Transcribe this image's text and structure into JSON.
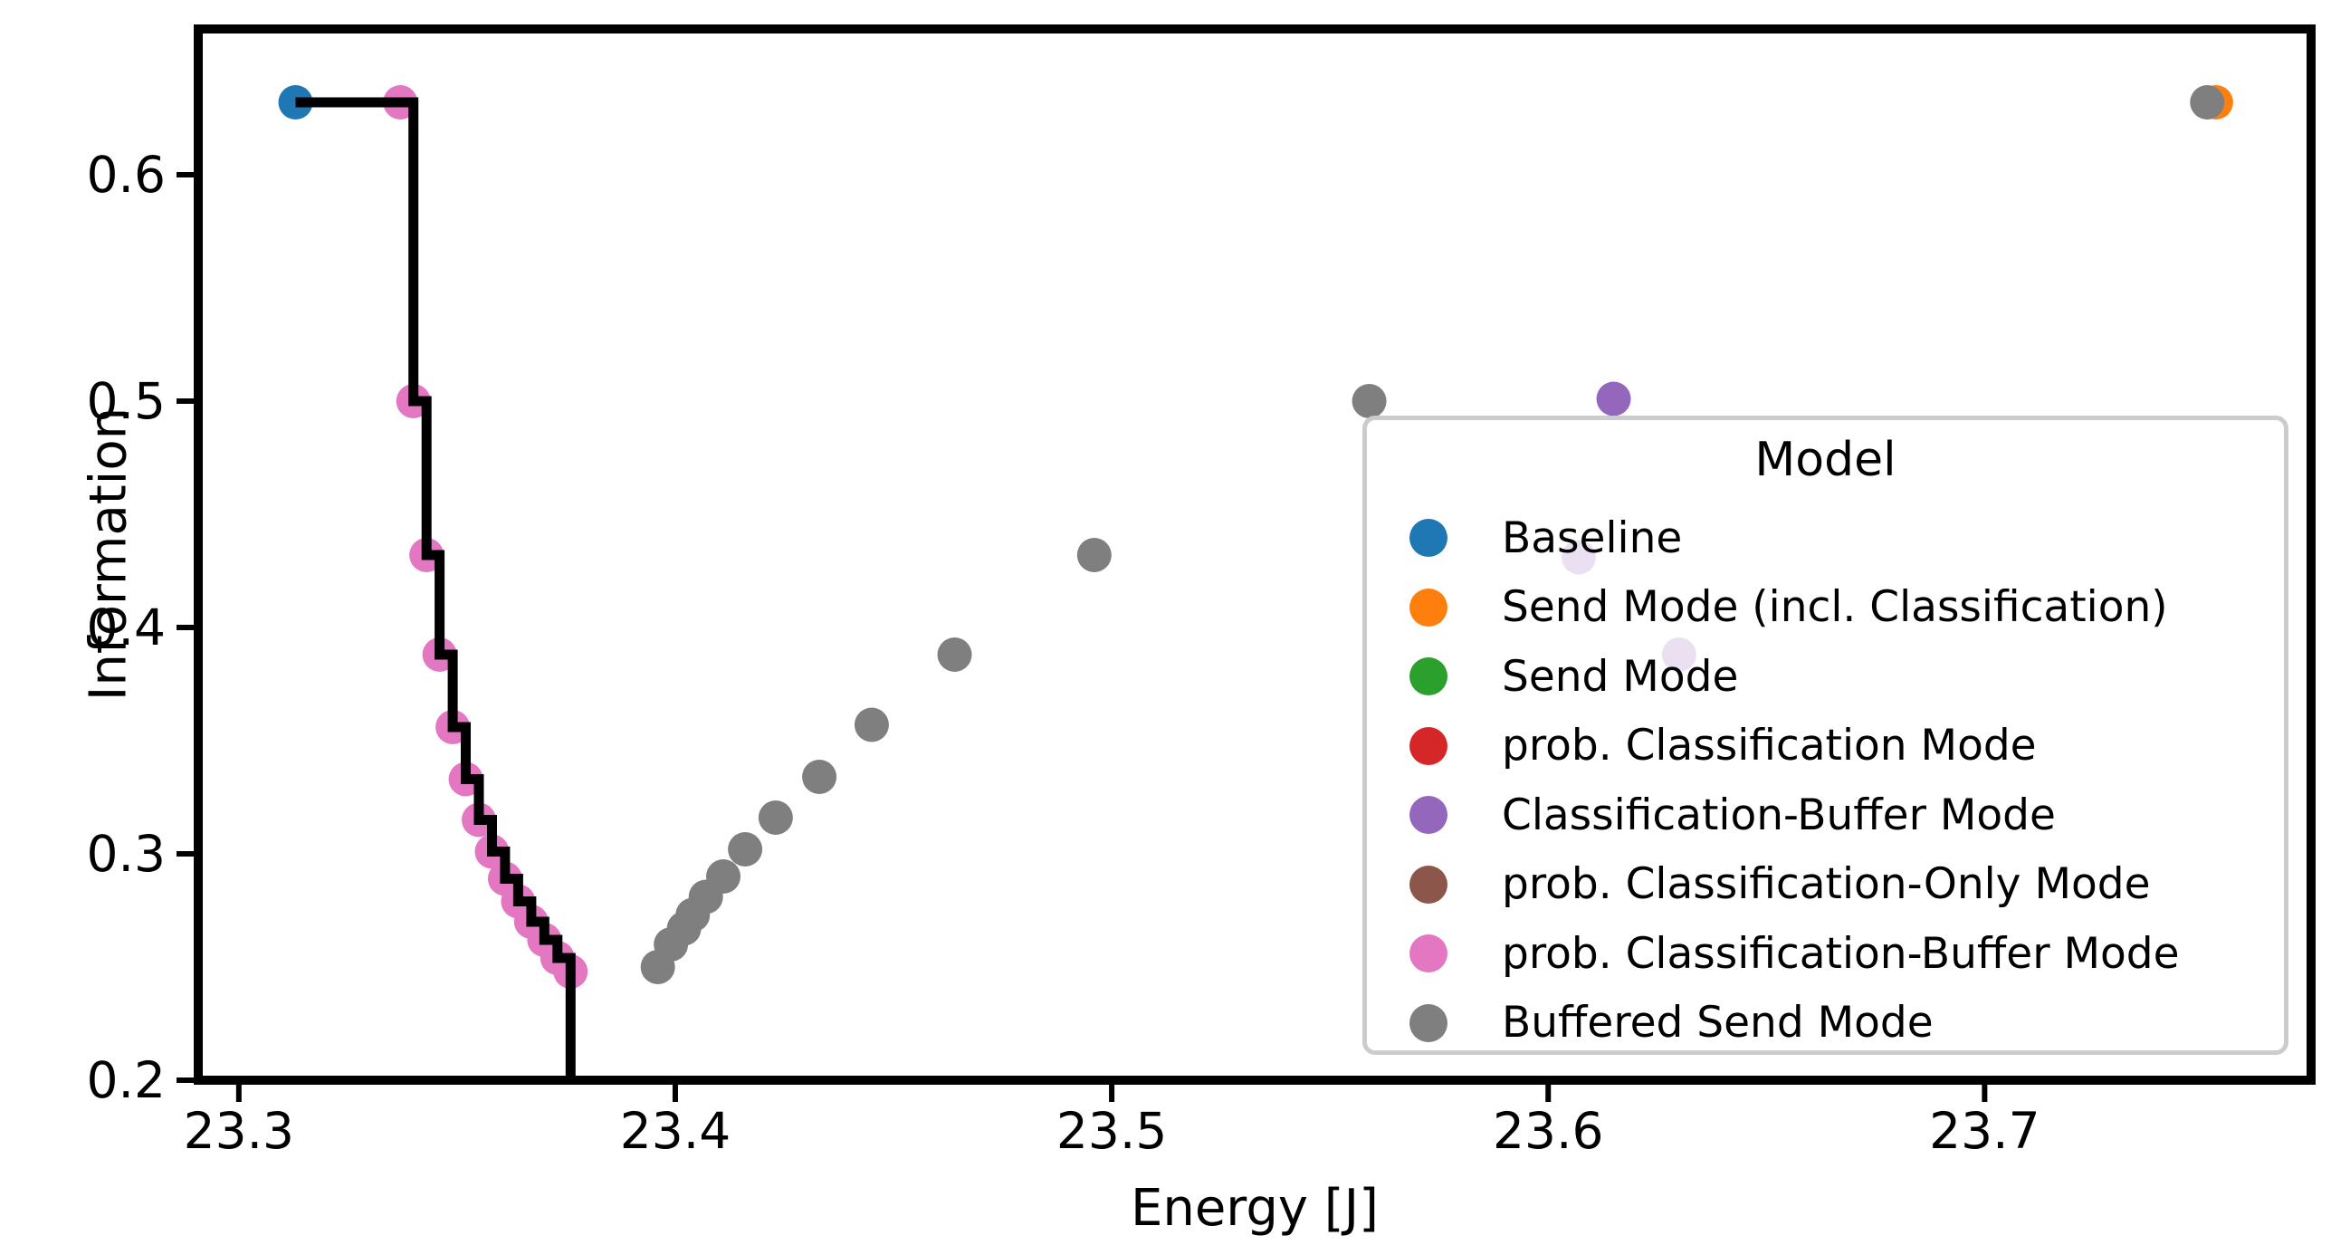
{
  "chart_data": {
    "type": "scatter",
    "title": "",
    "xlabel": "Energy [J]",
    "ylabel": "Information",
    "xlim": [
      23.2907,
      23.7748
    ],
    "ylim": [
      0.2,
      0.6644
    ],
    "grid": false,
    "xticks": {
      "values": [
        23.3,
        23.4,
        23.5,
        23.6,
        23.7
      ],
      "labels": [
        "23.3",
        "23.4",
        "23.5",
        "23.6",
        "23.7"
      ]
    },
    "yticks": {
      "values": [
        0.2,
        0.3,
        0.4,
        0.5,
        0.6
      ],
      "labels": [
        "0.2",
        "0.3",
        "0.4",
        "0.5",
        "0.6"
      ]
    },
    "legend": {
      "title": "Model",
      "position": "lower right inside"
    },
    "series": [
      {
        "name": "Baseline",
        "color": "#1f77b4",
        "points": [
          [
            23.313,
            0.632
          ]
        ]
      },
      {
        "name": "Send Mode (incl. Classification)",
        "color": "#ff7f0e",
        "points": [
          [
            23.753,
            0.632
          ]
        ]
      },
      {
        "name": "Send Mode",
        "color": "#2ca02c",
        "points": []
      },
      {
        "name": "prob. Classification Mode",
        "color": "#d62728",
        "points": []
      },
      {
        "name": "Classification-Buffer Mode",
        "color": "#9467bd",
        "points": [
          [
            23.615,
            0.501
          ],
          [
            23.607,
            0.431
          ],
          [
            23.63,
            0.388
          ]
        ]
      },
      {
        "name": "prob. Classification-Only Mode",
        "color": "#8c564b",
        "points": []
      },
      {
        "name": "prob. Classification-Buffer Mode",
        "color": "#e377c2",
        "points": [
          [
            23.337,
            0.632
          ],
          [
            23.34,
            0.5
          ],
          [
            23.343,
            0.432
          ],
          [
            23.346,
            0.388
          ],
          [
            23.349,
            0.356
          ],
          [
            23.352,
            0.333
          ],
          [
            23.355,
            0.315
          ],
          [
            23.358,
            0.301
          ],
          [
            23.361,
            0.289
          ],
          [
            23.364,
            0.279
          ],
          [
            23.367,
            0.27
          ],
          [
            23.37,
            0.262
          ],
          [
            23.373,
            0.254
          ],
          [
            23.376,
            0.248
          ]
        ]
      },
      {
        "name": "Buffered Send Mode",
        "color": "#7f7f7f",
        "points": [
          [
            23.396,
            0.25
          ],
          [
            23.399,
            0.26
          ],
          [
            23.402,
            0.267
          ],
          [
            23.404,
            0.273
          ],
          [
            23.407,
            0.281
          ],
          [
            23.411,
            0.29
          ],
          [
            23.416,
            0.302
          ],
          [
            23.423,
            0.316
          ],
          [
            23.433,
            0.334
          ],
          [
            23.445,
            0.357
          ],
          [
            23.464,
            0.388
          ],
          [
            23.496,
            0.432
          ],
          [
            23.559,
            0.5
          ],
          [
            23.751,
            0.632
          ]
        ]
      }
    ],
    "pareto_front": {
      "color": "#000000",
      "points": [
        [
          23.313,
          0.632
        ],
        [
          23.34,
          0.5
        ],
        [
          23.343,
          0.432
        ],
        [
          23.346,
          0.388
        ],
        [
          23.349,
          0.356
        ],
        [
          23.352,
          0.333
        ],
        [
          23.355,
          0.315
        ],
        [
          23.358,
          0.301
        ],
        [
          23.361,
          0.289
        ],
        [
          23.364,
          0.279
        ],
        [
          23.367,
          0.27
        ],
        [
          23.37,
          0.262
        ],
        [
          23.373,
          0.254
        ],
        [
          23.376,
          0.248
        ],
        [
          23.376,
          0.2
        ]
      ]
    }
  }
}
